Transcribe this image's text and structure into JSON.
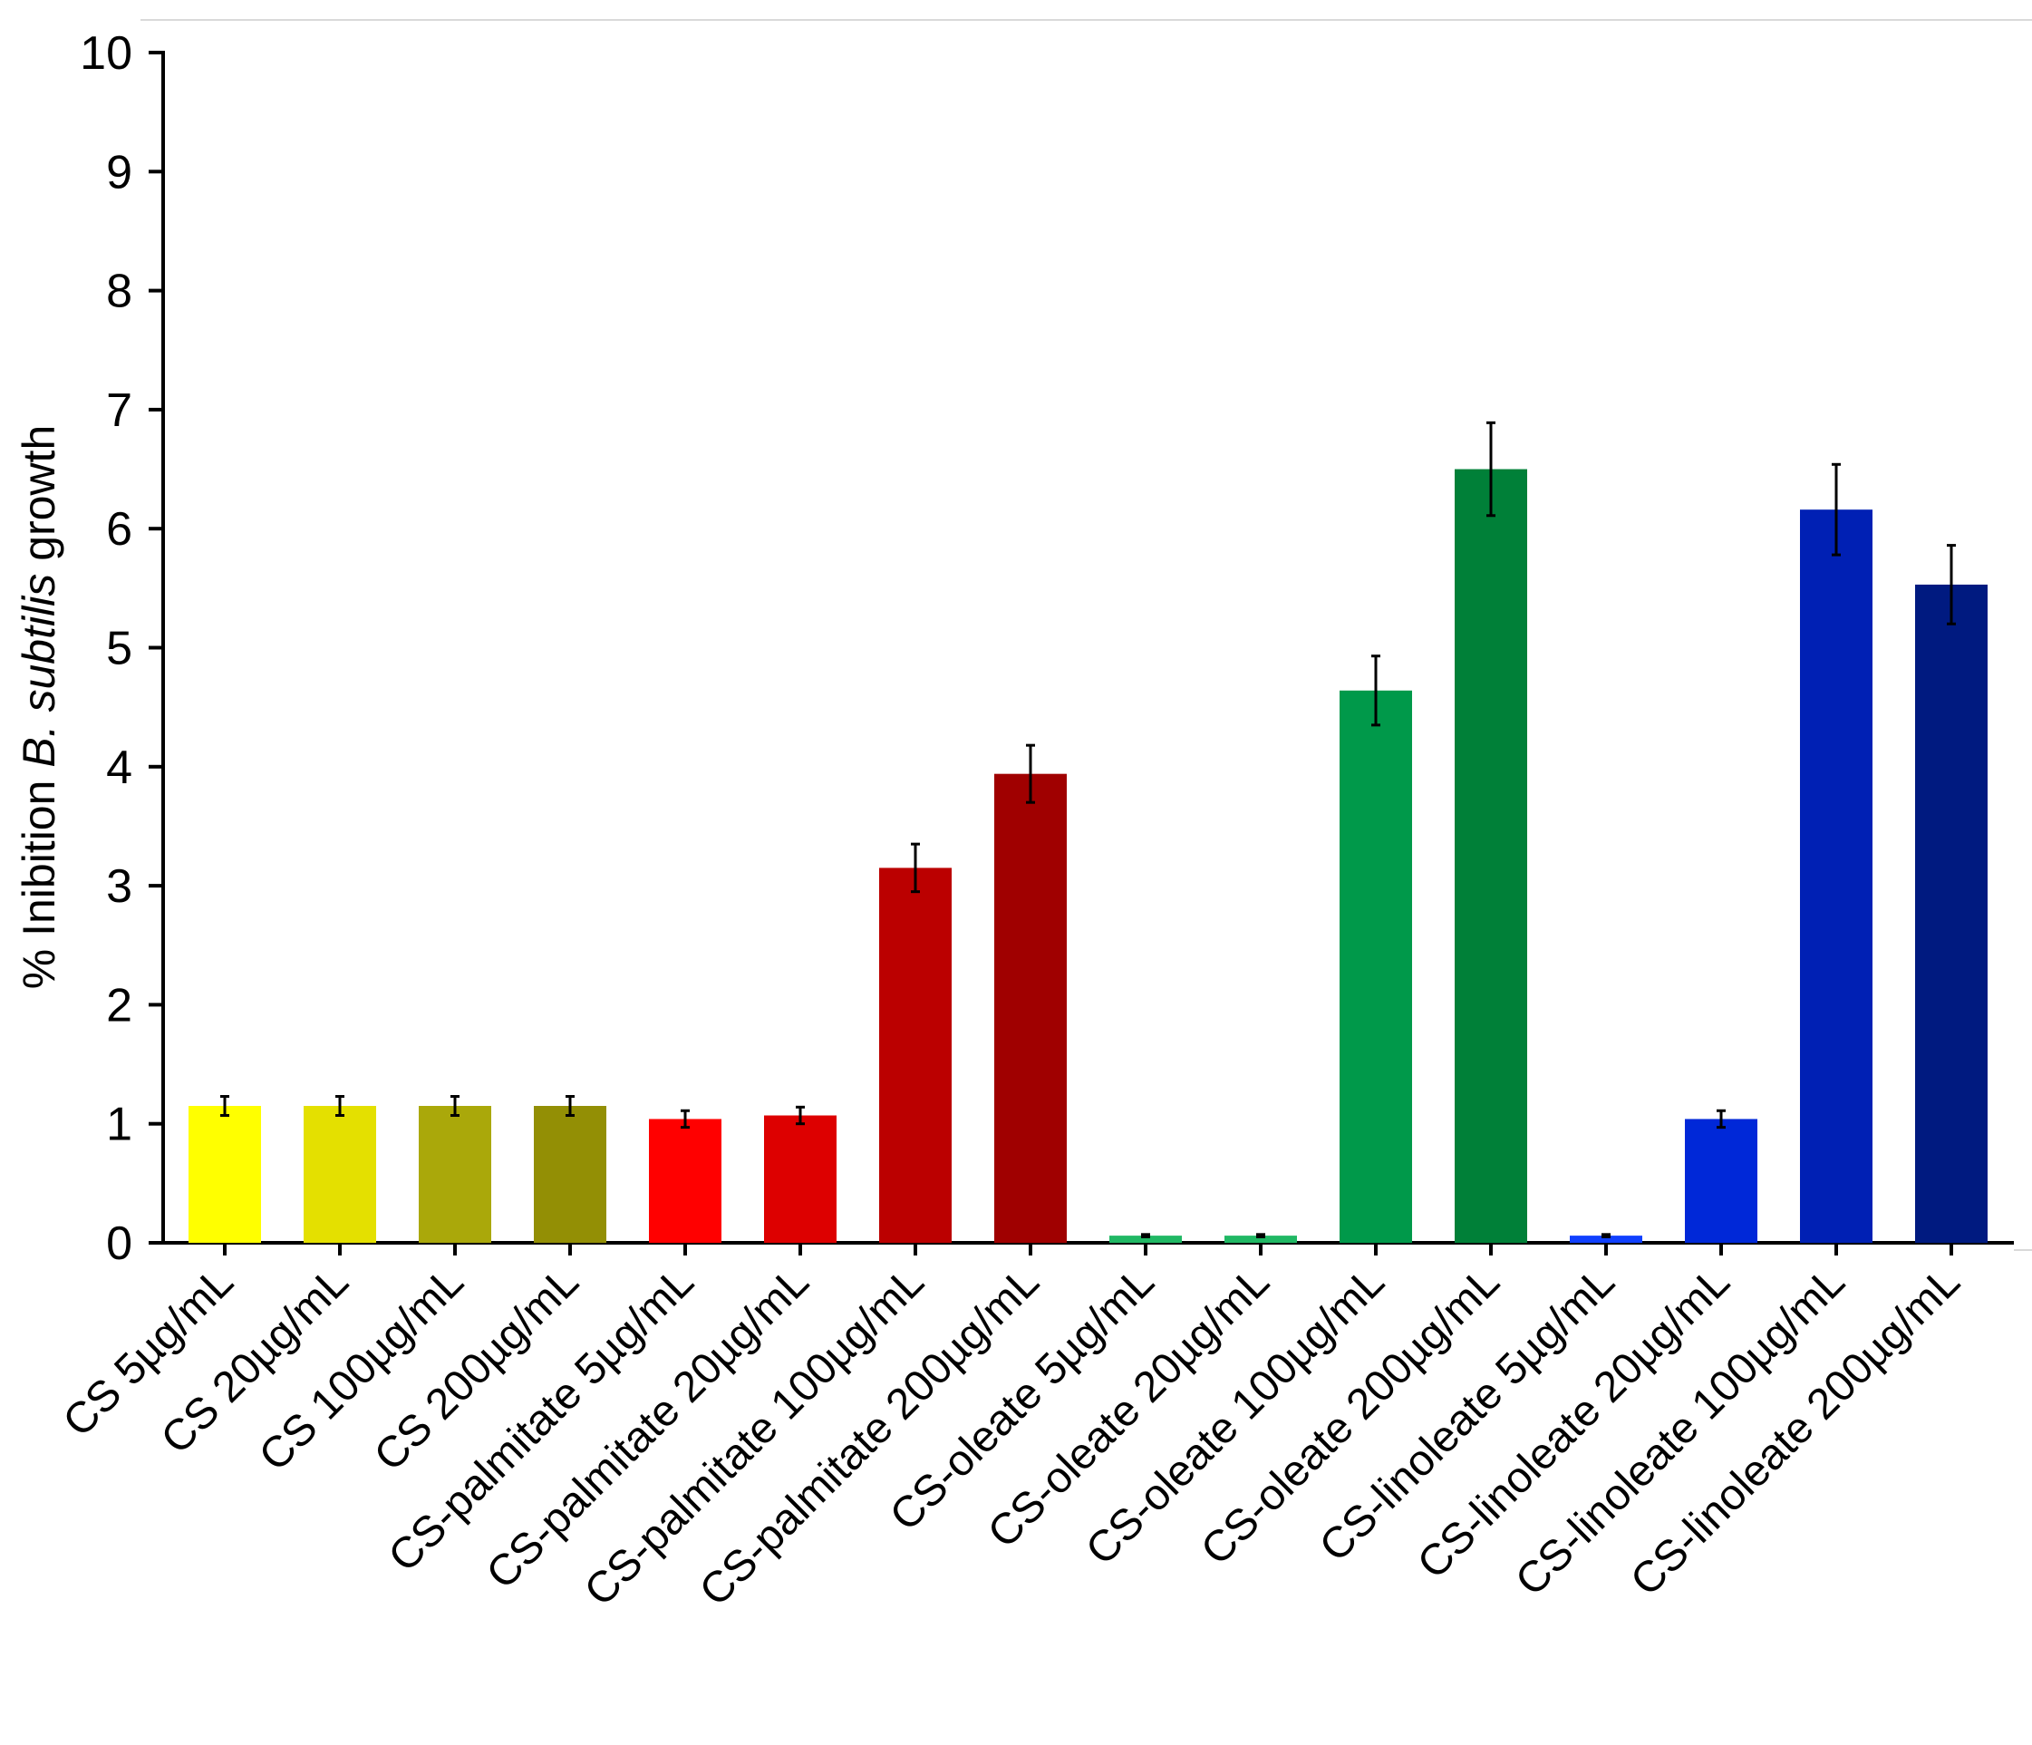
{
  "chart_data": {
    "type": "bar",
    "title": "",
    "xlabel": "",
    "ylabel": {
      "prefix": "% Inibition ",
      "italic": "B. subtilis",
      "suffix": " growth"
    },
    "ylim": [
      0,
      10
    ],
    "yticks": [
      "0",
      "1",
      "2",
      "3",
      "4",
      "5",
      "6",
      "7",
      "8",
      "9",
      "10"
    ],
    "grid": false,
    "legend": "none",
    "categories": [
      "CS 5µg/mL",
      "CS 20µg/mL",
      "CS 100µg/mL",
      "CS 200µg/mL",
      "CS-palmitate 5µg/mL",
      "CS-palmitate 20µg/mL",
      "CS-palmitate 100µg/mL",
      "CS-palmitate 200µg/mL",
      "CS-oleate 5µg/mL",
      "CS-oleate 20µg/mL",
      "CS-oleate 100µg/mL",
      "CS-oleate 200µg/mL",
      "CS-linoleate 5µg/mL",
      "CS-linoleate 20µg/mL",
      "CS-linoleate 100µg/mL",
      "CS-linoleate 200µg/mL"
    ],
    "values": [
      1.15,
      1.15,
      1.15,
      1.15,
      1.04,
      1.07,
      3.15,
      3.94,
      0.06,
      0.06,
      4.64,
      6.5,
      0.06,
      1.04,
      6.16,
      5.53
    ],
    "errors": [
      0.08,
      0.08,
      0.08,
      0.08,
      0.07,
      0.07,
      0.2,
      0.24,
      0.01,
      0.01,
      0.29,
      0.39,
      0.01,
      0.07,
      0.38,
      0.33
    ],
    "colors": [
      "#ffff00",
      "#e4e000",
      "#aaa80a",
      "#938f05",
      "#ff0000",
      "#dd0000",
      "#bb0000",
      "#a00000",
      "#20b864",
      "#20b864",
      "#00994a",
      "#008038",
      "#1040ff",
      "#0028d8",
      "#0020b4",
      "#001a80"
    ]
  }
}
